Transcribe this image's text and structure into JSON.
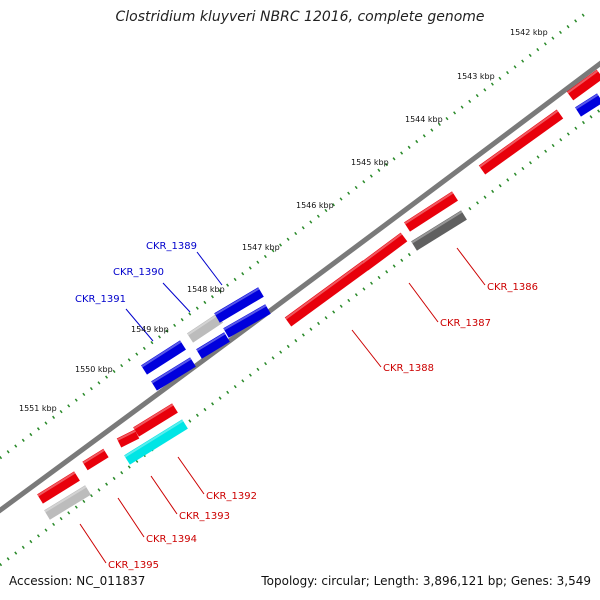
{
  "title": "Clostridium kluyveri NBRC 12016, complete genome",
  "footer": {
    "accession": "Accession: NC_011837",
    "stats": "Topology: circular; Length: 3,896,121 bp; Genes: 3,549"
  },
  "ticks": [
    "1542 kbp",
    "1543 kbp",
    "1544 kbp",
    "1545 kbp",
    "1546 kbp",
    "1547 kbp",
    "1548 kbp",
    "1549 kbp",
    "1550 kbp",
    "1551 kbp"
  ],
  "gene_labels": [
    "CKR_1386",
    "CKR_1387",
    "CKR_1388",
    "CKR_1389",
    "CKR_1390",
    "CKR_1391",
    "CKR_1392",
    "CKR_1393",
    "CKR_1394",
    "CKR_1395"
  ],
  "colors": {
    "red": "#e8000b",
    "blue": "#0000dd",
    "grey_dark": "#606060",
    "grey_light": "#bcbcbc",
    "cyan": "#00e5e5",
    "backbone": "#7a7a7a",
    "dots": "#2a8a2a",
    "label_blue": "#0000cc",
    "label_red": "#cc0000"
  }
}
